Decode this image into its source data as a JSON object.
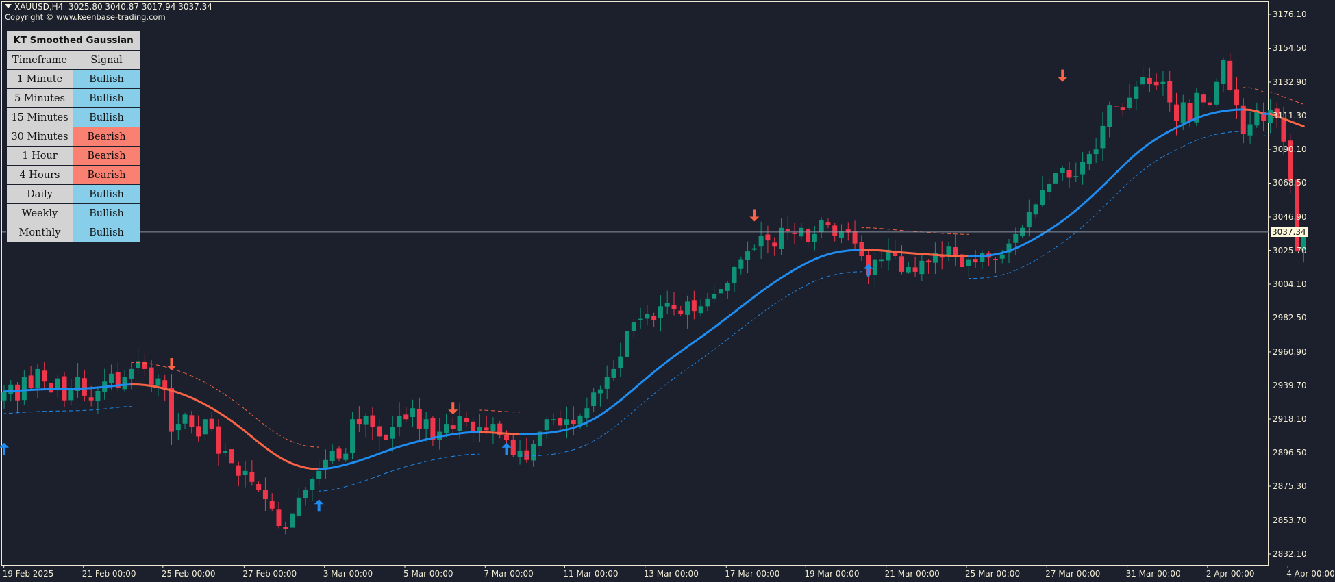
{
  "header": {
    "symbol_line": "XAUUSD,H4  3025.80 3040.87 3017.94 3037.34",
    "copyright": "Copyright © www.keenbase-trading.com"
  },
  "signal_table": {
    "title": "KT Smoothed Gaussian",
    "col_timeframe": "Timeframe",
    "col_signal": "Signal",
    "rows": [
      {
        "timeframe": "1 Minute",
        "signal": "Bullish"
      },
      {
        "timeframe": "5 Minutes",
        "signal": "Bullish"
      },
      {
        "timeframe": "15 Minutes",
        "signal": "Bullish"
      },
      {
        "timeframe": "30 Minutes",
        "signal": "Bearish"
      },
      {
        "timeframe": "1 Hour",
        "signal": "Bearish"
      },
      {
        "timeframe": "4 Hours",
        "signal": "Bearish"
      },
      {
        "timeframe": "Daily",
        "signal": "Bullish"
      },
      {
        "timeframe": "Weekly",
        "signal": "Bullish"
      },
      {
        "timeframe": "Monthly",
        "signal": "Bullish"
      }
    ]
  },
  "colors": {
    "background": "#1b202c",
    "axis": "#f0ead2",
    "bull_candle": "#0f9378",
    "bear_candle": "#f0364a",
    "line_bull": "#1e8cf0",
    "line_bear": "#fa6446",
    "bullish_cell": "#87ceeb",
    "bearish_cell": "#fa8072",
    "neutral_cell": "#d3d3d3",
    "price_line": "#8a94a6"
  },
  "chart_data": {
    "type": "candlestick",
    "title": "XAUUSD,H4",
    "ohlc_last": {
      "open": 3025.8,
      "high": 3040.87,
      "low": 3017.94,
      "close": 3037.34
    },
    "current_price": 3037.34,
    "y_ticks": [
      "3176.10",
      "3154.50",
      "3132.90",
      "3111.30",
      "3090.10",
      "3068.50",
      "3046.90",
      "3025.70",
      "3004.10",
      "2982.50",
      "2960.90",
      "2939.70",
      "2918.10",
      "2896.50",
      "2875.30",
      "2853.70",
      "2832.10"
    ],
    "ylim": [
      2824,
      3185
    ],
    "x_ticks": [
      {
        "label": "19 Feb 2025",
        "x": 3
      },
      {
        "label": "21 Feb 00:00",
        "x": 98
      },
      {
        "label": "25 Feb 00:00",
        "x": 193
      },
      {
        "label": "27 Feb 00:00",
        "x": 290
      },
      {
        "label": "3 Mar 00:00",
        "x": 386
      },
      {
        "label": "5 Mar 00:00",
        "x": 482
      },
      {
        "label": "7 Mar 00:00",
        "x": 578
      },
      {
        "label": "11 Mar 00:00",
        "x": 673
      },
      {
        "label": "13 Mar 00:00",
        "x": 769
      },
      {
        "label": "17 Mar 00:00",
        "x": 866
      },
      {
        "label": "19 Mar 00:00",
        "x": 961
      },
      {
        "label": "21 Mar 00:00",
        "x": 1057
      },
      {
        "label": "25 Mar 00:00",
        "x": 1153
      },
      {
        "label": "27 Mar 00:00",
        "x": 1249
      },
      {
        "label": "31 Mar 00:00",
        "x": 1345
      },
      {
        "label": "2 Apr 00:00",
        "x": 1441
      },
      {
        "label": "4 Apr 00:00",
        "x": 1537
      }
    ],
    "close_path": [
      2935,
      2940,
      2930,
      2945,
      2938,
      2950,
      2942,
      2935,
      2944,
      2930,
      2937,
      2945,
      2933,
      2930,
      2936,
      2942,
      2947,
      2938,
      2945,
      2950,
      2955,
      2950,
      2940,
      2944,
      2937,
      2910,
      2915,
      2921,
      2913,
      2907,
      2918,
      2912,
      2896,
      2898,
      2890,
      2882,
      2885,
      2878,
      2873,
      2867,
      2861,
      2850,
      2848,
      2858,
      2868,
      2873,
      2880,
      2885,
      2892,
      2898,
      2893,
      2896,
      2918,
      2915,
      2920,
      2913,
      2907,
      2905,
      2913,
      2920,
      2918,
      2925,
      2912,
      2918,
      2905,
      2910,
      2915,
      2912,
      2920,
      2916,
      2910,
      2913,
      2911,
      2915,
      2908,
      2905,
      2895,
      2898,
      2892,
      2902,
      2910,
      2918,
      2918,
      2914,
      2918,
      2915,
      2920,
      2925,
      2935,
      2937,
      2945,
      2950,
      2958,
      2974,
      2980,
      2982,
      2985,
      2981,
      2990,
      2992,
      2988,
      2985,
      2993,
      2987,
      2990,
      2995,
      2998,
      3001,
      3005,
      3015,
      3020,
      3025,
      3027,
      3035,
      3032,
      3028,
      3040,
      3038,
      3036,
      3040,
      3031,
      3036,
      3045,
      3042,
      3035,
      3038,
      3037,
      3030,
      3022,
      3010,
      3020,
      3020,
      3026,
      3022,
      3012,
      3015,
      3012,
      3019,
      3018,
      3024,
      3021,
      3028,
      3022,
      3015,
      3020,
      3018,
      3024,
      3021,
      3020,
      3023,
      3030,
      3036,
      3040,
      3050,
      3055,
      3064,
      3068,
      3075,
      3078,
      3072,
      3073,
      3082,
      3087,
      3090,
      3105,
      3118,
      3117,
      3115,
      3123,
      3130,
      3136,
      3132,
      3131,
      3133,
      3120,
      3108,
      3120,
      3108,
      3126,
      3120,
      3118,
      3133,
      3147,
      3128,
      3118,
      3100,
      3106,
      3115,
      3108,
      3115,
      3110,
      3095,
      3070,
      3025,
      3037
    ],
    "arrows": [
      {
        "type": "up",
        "bar": 0,
        "price": 2899
      },
      {
        "type": "down",
        "bar": 25,
        "price": 2953
      },
      {
        "type": "up",
        "bar": 47,
        "price": 2863
      },
      {
        "type": "down",
        "bar": 67,
        "price": 2925
      },
      {
        "type": "up",
        "bar": 75,
        "price": 2899
      },
      {
        "type": "down",
        "bar": 112,
        "price": 3048
      },
      {
        "type": "up",
        "bar": 129,
        "price": 3013
      },
      {
        "type": "down",
        "bar": 158,
        "price": 3137
      }
    ],
    "series": [
      {
        "name": "Smoothed Gaussian (bullish)",
        "color": "#1e8cf0"
      },
      {
        "name": "Smoothed Gaussian (bearish)",
        "color": "#fa6446"
      }
    ]
  }
}
